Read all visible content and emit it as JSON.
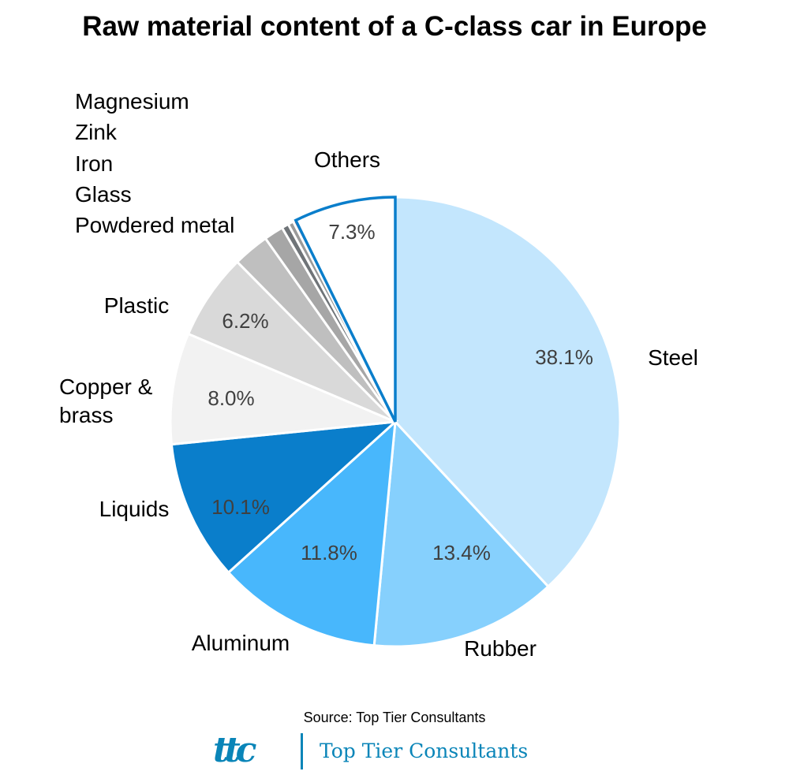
{
  "chart_data": {
    "type": "pie",
    "title": "Raw material content of a C-class car in Europe",
    "start": "12 o'clock, clockwise",
    "slices": [
      {
        "label": "Steel",
        "value": 38.1,
        "value_label": "38.1%",
        "color": "#c3e6fd"
      },
      {
        "label": "Rubber",
        "value": 13.4,
        "value_label": "13.4%",
        "color": "#86d0fd"
      },
      {
        "label": "Aluminum",
        "value": 11.8,
        "value_label": "11.8%",
        "color": "#48b7fc"
      },
      {
        "label": "Liquids",
        "value": 10.1,
        "value_label": "10.1%",
        "color": "#0a7ecb"
      },
      {
        "label": "Copper & brass",
        "value": 8.0,
        "value_label": "8.0%",
        "color": "#f2f2f2"
      },
      {
        "label": "Plastic",
        "value": 6.2,
        "value_label": "6.2%",
        "color": "#d9d9d9"
      },
      {
        "label": "Powdered metal",
        "value": 2.6,
        "value_label": "",
        "color": "#bfbfbf"
      },
      {
        "label": "Glass",
        "value": 1.4,
        "value_label": "",
        "color": "#a6a6a6"
      },
      {
        "label": "Iron",
        "value": 0.5,
        "value_label": "",
        "color": "#6f7478"
      },
      {
        "label": "Zink",
        "value": 0.4,
        "value_label": "",
        "color": "#9a9a9a"
      },
      {
        "label": "Magnesium",
        "value": 0.2,
        "value_label": "",
        "color": "#c0504d"
      },
      {
        "label": "Others",
        "value": 7.3,
        "value_label": "7.3%",
        "color": "#ffffff",
        "outline": "#0a7ecb"
      }
    ],
    "legend": "none"
  },
  "footer": {
    "source": "Source: Top Tier Consultants",
    "logo_mark": "ttc",
    "logo_name": "Top Tier Consultants"
  }
}
